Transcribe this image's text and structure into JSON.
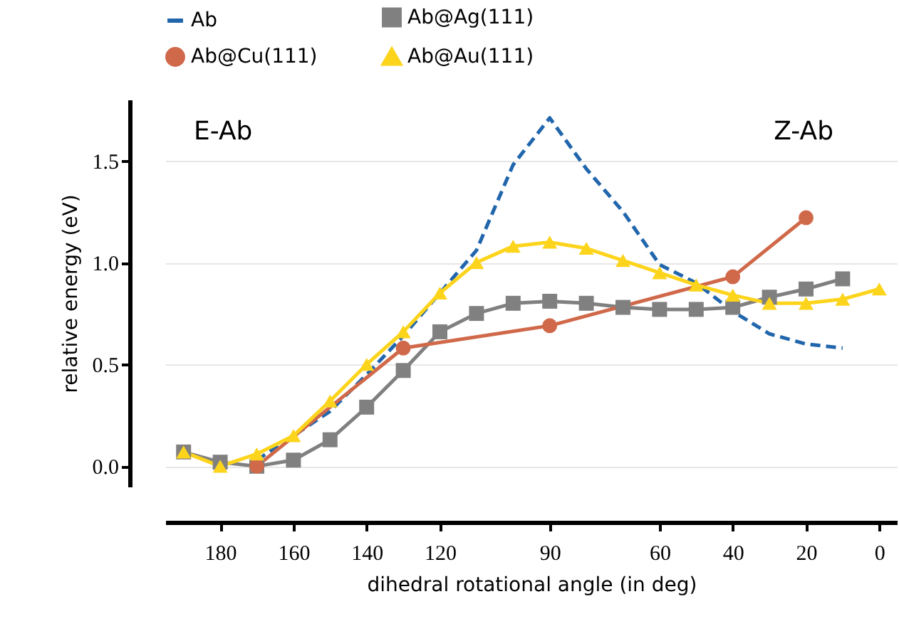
{
  "chart_data": {
    "type": "line",
    "xlabel": "dihedral rotational angle (in deg)",
    "ylabel": "relative energy (eV)",
    "xlim": [
      195,
      -5
    ],
    "xticks": [
      180,
      160,
      140,
      120,
      90,
      60,
      40,
      20,
      0
    ],
    "ylim": [
      -0.1,
      1.8
    ],
    "yticks": [
      {
        "value": 0,
        "label": "0.0"
      },
      0.5,
      {
        "value": 1,
        "label": "1.0"
      },
      1.5
    ],
    "grid": "y",
    "legend": "top",
    "annotations": [
      "E-Ab",
      "Z-Ab"
    ],
    "series": [
      {
        "name": "Ab",
        "color": "#2166ac",
        "line_style": "dashed",
        "marker": "none",
        "x": [
          170,
          160,
          150,
          140,
          130,
          120,
          110,
          100,
          90,
          80,
          70,
          60,
          50,
          40,
          30,
          20,
          10
        ],
        "values": [
          0.03,
          0.15,
          0.27,
          0.45,
          0.64,
          0.85,
          1.06,
          1.48,
          1.71,
          1.46,
          1.25,
          0.99,
          0.9,
          0.76,
          0.65,
          0.6,
          0.58
        ]
      },
      {
        "name": "Ab@Ag(111)",
        "color": "#808080",
        "line_style": "solid",
        "marker": "square",
        "x": [
          190,
          180,
          170,
          160,
          150,
          140,
          130,
          120,
          110,
          100,
          90,
          80,
          70,
          60,
          50,
          40,
          30,
          20,
          10
        ],
        "values": [
          0.07,
          0.02,
          0.0,
          0.03,
          0.13,
          0.29,
          0.47,
          0.66,
          0.75,
          0.8,
          0.81,
          0.8,
          0.78,
          0.77,
          0.77,
          0.78,
          0.83,
          0.87,
          0.92
        ]
      },
      {
        "name": "Ab@Cu(111)",
        "color": "#d0694a",
        "line_style": "solid",
        "marker": "circle",
        "x": [
          170,
          130,
          90,
          40,
          20
        ],
        "values": [
          0.0,
          0.58,
          0.69,
          0.93,
          1.22
        ]
      },
      {
        "name": "Ab@Au(111)",
        "color": "#fdd41c",
        "line_style": "solid",
        "marker": "triangle",
        "x": [
          190,
          180,
          170,
          160,
          150,
          140,
          130,
          120,
          110,
          100,
          90,
          80,
          70,
          60,
          50,
          40,
          30,
          20,
          10,
          0
        ],
        "values": [
          0.07,
          0.0,
          0.06,
          0.15,
          0.32,
          0.5,
          0.66,
          0.85,
          1.0,
          1.08,
          1.1,
          1.07,
          1.01,
          0.95,
          0.89,
          0.84,
          0.8,
          0.8,
          0.82,
          0.87
        ]
      }
    ]
  }
}
